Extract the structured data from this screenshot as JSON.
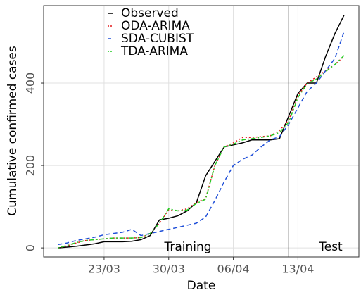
{
  "chart_data": {
    "type": "line",
    "xlabel": "Date",
    "ylabel": "Cumulative confirmed cases",
    "x": [
      "18/03",
      "19/03",
      "20/03",
      "21/03",
      "22/03",
      "23/03",
      "24/03",
      "25/03",
      "26/03",
      "27/03",
      "28/03",
      "29/03",
      "30/03",
      "31/03",
      "01/04",
      "02/04",
      "03/04",
      "04/04",
      "05/04",
      "06/04",
      "07/04",
      "08/04",
      "09/04",
      "10/04",
      "11/04",
      "12/04",
      "13/04",
      "14/04",
      "15/04",
      "16/04",
      "17/04",
      "18/04"
    ],
    "series": [
      {
        "name": "Observed",
        "color": "#000000",
        "dash": "solid",
        "values": [
          0,
          2,
          4,
          7,
          10,
          15,
          15,
          15,
          16,
          20,
          30,
          68,
          72,
          78,
          90,
          110,
          175,
          210,
          245,
          250,
          255,
          262,
          262,
          262,
          265,
          320,
          375,
          400,
          400,
          465,
          520,
          565
        ]
      },
      {
        "name": "ODA-ARIMA",
        "color": "#e41a1c",
        "dash": "dotted",
        "values": [
          0,
          5,
          12,
          18,
          20,
          22,
          24,
          24,
          24,
          25,
          35,
          60,
          92,
          90,
          95,
          110,
          120,
          200,
          245,
          255,
          268,
          268,
          270,
          272,
          285,
          310,
          370,
          400,
          415,
          430,
          445,
          465
        ]
      },
      {
        "name": "SDA-CUBIST",
        "color": "#1f4fd8",
        "dash": "dashed",
        "values": [
          8,
          12,
          18,
          22,
          26,
          32,
          35,
          38,
          45,
          30,
          35,
          40,
          45,
          50,
          55,
          60,
          75,
          115,
          160,
          200,
          215,
          225,
          245,
          262,
          270,
          300,
          340,
          380,
          400,
          430,
          460,
          525
        ]
      },
      {
        "name": "TDA-ARIMA",
        "color": "#22cc22",
        "dash": "dotdash",
        "values": [
          0,
          6,
          13,
          18,
          20,
          22,
          24,
          24,
          24,
          25,
          35,
          60,
          95,
          90,
          92,
          108,
          118,
          200,
          245,
          252,
          262,
          265,
          268,
          272,
          280,
          305,
          365,
          398,
          410,
          428,
          445,
          467
        ]
      }
    ],
    "xticks": [
      "23/03",
      "30/03",
      "06/04",
      "13/04"
    ],
    "ylim": [
      -22,
      588
    ],
    "yticks": [
      0,
      200,
      400
    ],
    "grid": true,
    "vline": "12/04",
    "annotations": [
      "Training",
      "Test"
    ]
  }
}
